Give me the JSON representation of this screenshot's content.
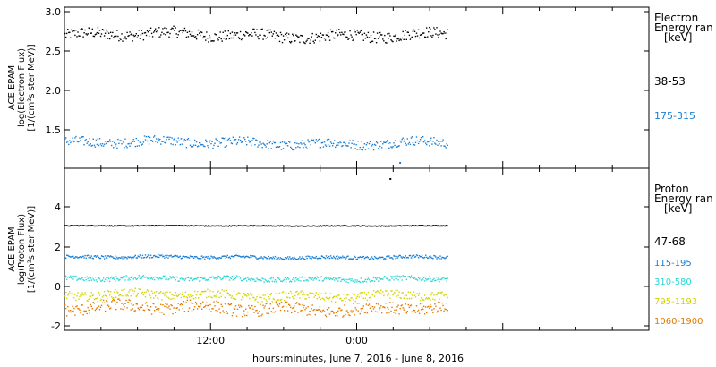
{
  "chart_data": [
    {
      "type": "scatter",
      "panel": "electron",
      "ylabel_lines": [
        "ACE EPAM",
        "log(Electron Flux)",
        "[1/(cm²s ster MeV)]"
      ],
      "yticks": [
        "3.0",
        "2.5",
        "2.0",
        "1.5"
      ],
      "ylim": [
        1.0,
        3.05
      ],
      "legend_title_lines": [
        "Electron",
        "Energy ran",
        "[keV]"
      ],
      "series": [
        {
          "name": "38-53",
          "color": "#000000",
          "base": 2.7,
          "spread": 0.07
        },
        {
          "name": "175-315",
          "color": "#1a7fd4",
          "base": 1.33,
          "spread": 0.06
        }
      ],
      "outliers": [
        {
          "t": 27.5,
          "y": 1.08,
          "color": "#1a7fd4"
        }
      ]
    },
    {
      "type": "scatter",
      "panel": "proton",
      "ylabel_lines": [
        "ACE EPAM",
        "log(Proton Flux)",
        "[1/(cm²s ster MeV)]"
      ],
      "yticks": [
        "4",
        "2",
        "0",
        "-2"
      ],
      "ylim": [
        -2.15,
        6.1
      ],
      "legend_title_lines": [
        "Proton",
        "Energy ran",
        "[keV]"
      ],
      "series": [
        {
          "name": "47-68",
          "color": "#000000",
          "base": 3.2,
          "spread": 0.02
        },
        {
          "name": "115-195",
          "color": "#1a7fd4",
          "base": 1.6,
          "spread": 0.08
        },
        {
          "name": "310-580",
          "color": "#2cd6d6",
          "base": 0.5,
          "spread": 0.12
        },
        {
          "name": "795-1193",
          "color": "#d4d400",
          "base": -0.35,
          "spread": 0.22
        },
        {
          "name": "1060-1900",
          "color": "#e07a00",
          "base": -1.0,
          "spread": 0.3
        }
      ],
      "outliers": [
        {
          "t": 26.7,
          "y": 5.6,
          "color": "#000000"
        }
      ]
    }
  ],
  "x_axis": {
    "tick_labels": [
      "12:00",
      "0:00"
    ],
    "xlabel": "hours:minutes, June  7, 2016 - June  8, 2016",
    "range_hours": [
      0,
      48
    ],
    "data_end_hour": 31.5
  }
}
